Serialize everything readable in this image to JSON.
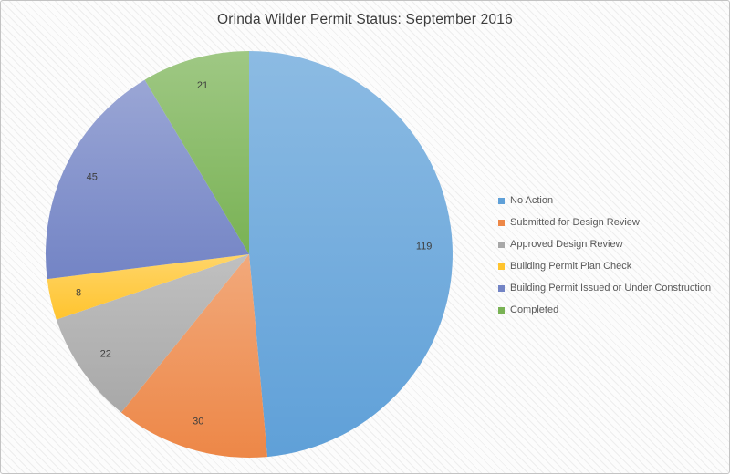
{
  "chart_data": {
    "type": "pie",
    "title": "Orinda Wilder Permit Status: September 2016",
    "categories": [
      "No Action",
      "Submitted for Design Review",
      "Approved Design Review",
      "Building Permit Plan Check",
      "Building Permit Issued or Under Construction",
      "Completed"
    ],
    "values": [
      119,
      30,
      22,
      8,
      45,
      21
    ],
    "colors": [
      "#5fa0d8",
      "#ed8747",
      "#a8a8a8",
      "#ffc42e",
      "#7384c5",
      "#79b254"
    ],
    "start_angle_deg": 0,
    "direction": "clockwise",
    "legend_position": "right",
    "data_labels": "values",
    "label_color": "#3d3d3d",
    "title_color": "#3b3b3b"
  }
}
